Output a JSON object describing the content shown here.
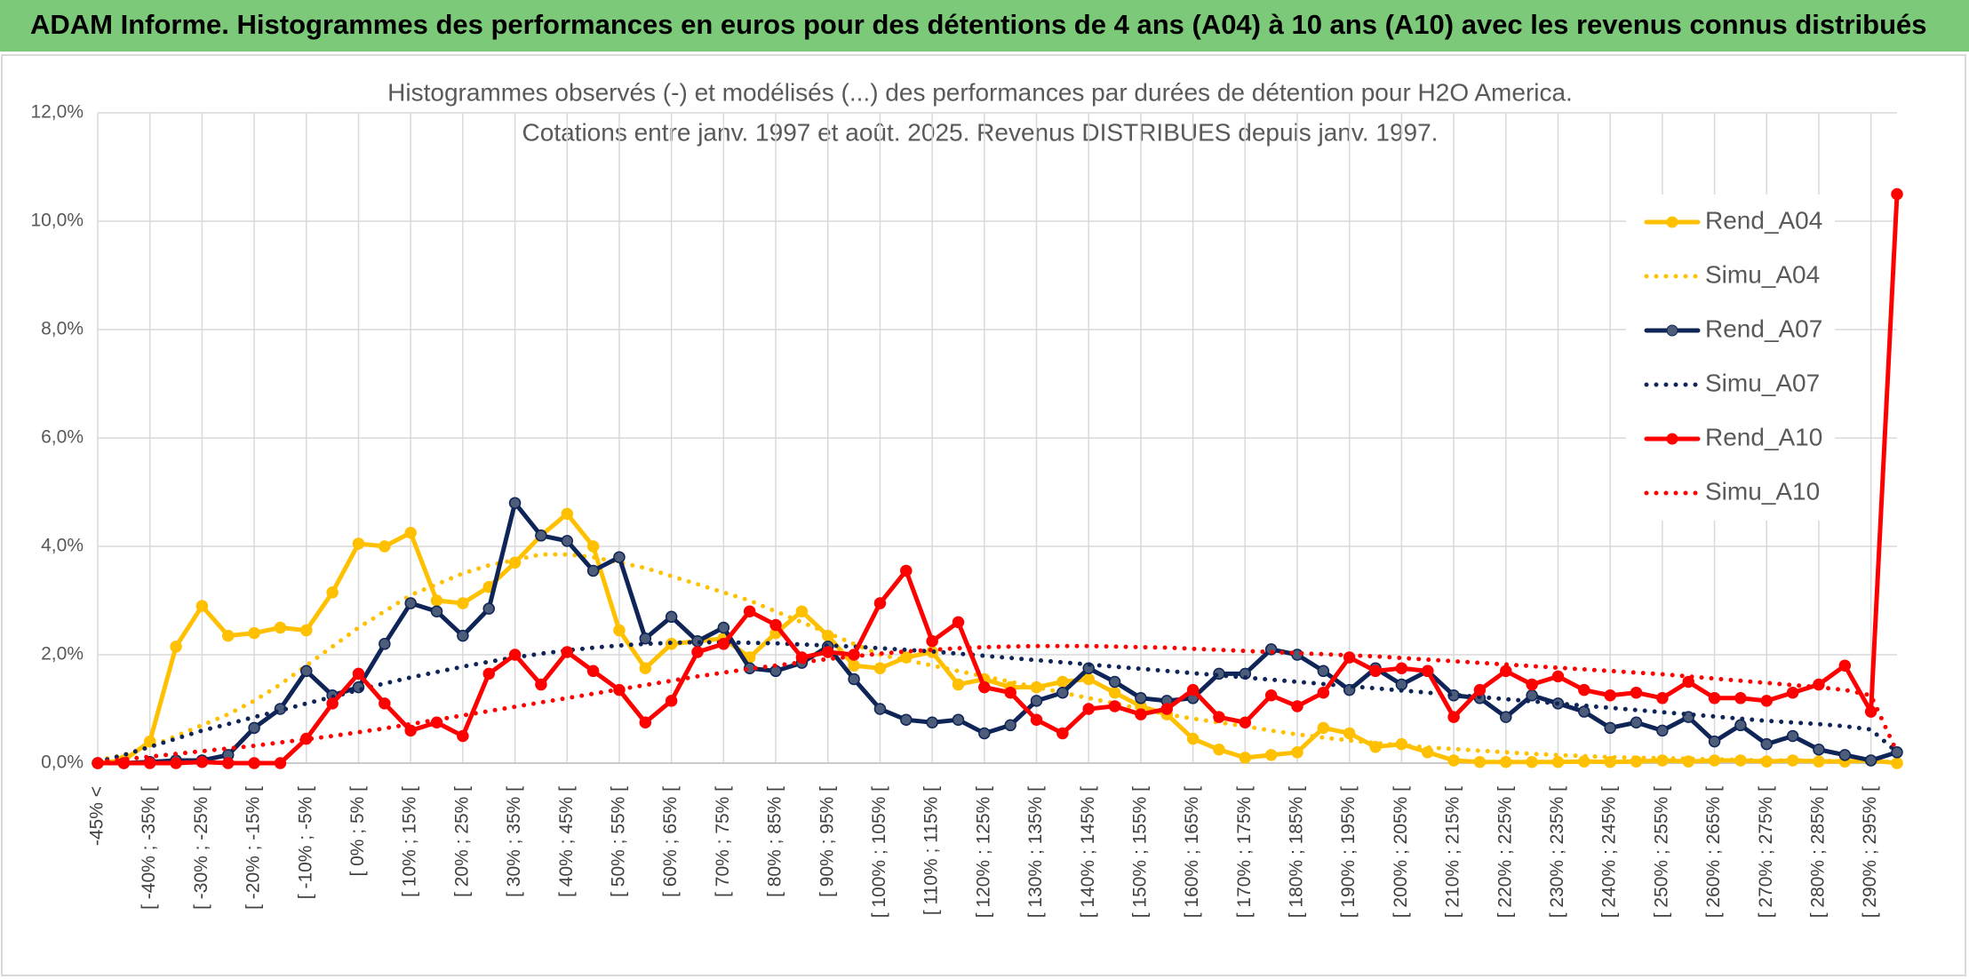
{
  "header": {
    "title": "ADAM Informe. Histogrammes des performances en euros pour des détentions de 4 ans (A04) à 10 ans (A10) avec les revenus connus distribués"
  },
  "chart_data": {
    "type": "line",
    "title": "Histogrammes observés (-) et modélisés (...) des performances par durées de détention pour H2O America.",
    "subtitle": "Cotations entre janv. 1997 et août. 2025. Revenus DISTRIBUES depuis janv. 1997.",
    "categories": [
      "-45% <",
      null,
      "[ -40% ; -35% [",
      null,
      "[ -30% ; -25% [",
      null,
      "[ -20% ; -15% [",
      null,
      "[ -10% ; -5% [",
      null,
      "[ 0% ; 5% [",
      null,
      "[ 10% ; 15% [",
      null,
      "[ 20% ; 25% [",
      null,
      "[ 30% ; 35% [",
      null,
      "[ 40% ; 45% [",
      null,
      "[ 50% ; 55% [",
      null,
      "[ 60% ; 65% [",
      null,
      "[ 70% ; 75% [",
      null,
      "[ 80% ; 85% [",
      null,
      "[ 90% ; 95% [",
      null,
      "[ 100% ; 105% [",
      null,
      "[ 110% ; 115% [",
      null,
      "[ 120% ; 125% [",
      null,
      "[ 130% ; 135% [",
      null,
      "[ 140% ; 145% [",
      null,
      "[ 150% ; 155% [",
      null,
      "[ 160% ; 165% [",
      null,
      "[ 170% ; 175% [",
      null,
      "[ 180% ; 185% [",
      null,
      "[ 190% ; 195% [",
      null,
      "[ 200% ; 205% [",
      null,
      "[ 210% ; 215% [",
      null,
      "[ 220% ; 225% [",
      null,
      "[ 230% ; 235% [",
      null,
      "[ 240% ; 245% [",
      null,
      "[ 250% ; 255% [",
      null,
      "[ 260% ; 265% [",
      null,
      "[ 270% ; 275% [",
      null,
      "[ 280% ; 285% [",
      null,
      "[ 290% ; 295% [",
      null
    ],
    "series": [
      {
        "name": "Rend_A04",
        "color": "#ffc000",
        "style": "solid",
        "values": [
          0,
          0.05,
          0.4,
          2.15,
          2.9,
          2.35,
          2.4,
          2.5,
          2.45,
          3.15,
          4.05,
          4.0,
          4.25,
          3.0,
          2.95,
          3.25,
          3.7,
          4.2,
          4.6,
          4.0,
          2.45,
          1.75,
          2.2,
          2.25,
          2.3,
          1.95,
          2.4,
          2.8,
          2.35,
          1.8,
          1.75,
          1.95,
          2.05,
          1.45,
          1.55,
          1.4,
          1.4,
          1.5,
          1.55,
          1.3,
          1.05,
          0.9,
          0.45,
          0.25,
          0.1,
          0.15,
          0.2,
          0.65,
          0.55,
          0.3,
          0.35,
          0.2,
          0.05,
          0.02,
          0.02,
          0.02,
          0.02,
          0.03,
          0.02,
          0.03,
          0.05,
          0.03,
          0.05,
          0.05,
          0.03,
          0.05,
          0.03,
          0.03,
          0.05,
          0
        ]
      },
      {
        "name": "Simu_A04",
        "color": "#ffc000",
        "style": "dotted",
        "values": [
          0.05,
          0.15,
          0.3,
          0.5,
          0.7,
          0.9,
          1.15,
          1.45,
          1.8,
          2.15,
          2.5,
          2.8,
          3.1,
          3.3,
          3.5,
          3.65,
          3.75,
          3.85,
          3.85,
          3.8,
          3.7,
          3.6,
          3.45,
          3.3,
          3.15,
          3.0,
          2.8,
          2.6,
          2.4,
          2.2,
          2.0,
          1.9,
          1.8,
          1.7,
          1.6,
          1.5,
          1.4,
          1.3,
          1.2,
          1.1,
          1.0,
          0.9,
          0.82,
          0.75,
          0.68,
          0.6,
          0.53,
          0.47,
          0.42,
          0.37,
          0.33,
          0.29,
          0.26,
          0.23,
          0.2,
          0.17,
          0.15,
          0.13,
          0.11,
          0.1,
          0.09,
          0.08,
          0.07,
          0.06,
          0.05,
          0.05,
          0.04,
          0.04,
          0.03,
          0.02
        ]
      },
      {
        "name": "Rend_A07",
        "color": "#0f2557",
        "style": "solid",
        "values": [
          0,
          0,
          0.02,
          0.05,
          0.05,
          0.15,
          0.65,
          1.0,
          1.7,
          1.25,
          1.4,
          2.2,
          2.95,
          2.8,
          2.35,
          2.85,
          4.8,
          4.2,
          4.1,
          3.55,
          3.8,
          2.3,
          2.7,
          2.25,
          2.5,
          1.75,
          1.7,
          1.85,
          2.15,
          1.55,
          1.0,
          0.8,
          0.75,
          0.8,
          0.55,
          0.7,
          1.15,
          1.3,
          1.75,
          1.5,
          1.2,
          1.15,
          1.2,
          1.65,
          1.65,
          2.1,
          2.0,
          1.7,
          1.35,
          1.75,
          1.45,
          1.7,
          1.25,
          1.2,
          0.85,
          1.25,
          1.1,
          0.95,
          0.65,
          0.75,
          0.6,
          0.85,
          0.4,
          0.7,
          0.35,
          0.5,
          0.25,
          0.15,
          0.05,
          0.2
        ]
      },
      {
        "name": "Simu_A07",
        "color": "#0f2557",
        "style": "dotted",
        "values": [
          0.02,
          0.15,
          0.3,
          0.45,
          0.6,
          0.72,
          0.85,
          0.97,
          1.1,
          1.22,
          1.35,
          1.47,
          1.58,
          1.68,
          1.78,
          1.87,
          1.95,
          2.02,
          2.08,
          2.13,
          2.17,
          2.2,
          2.22,
          2.23,
          2.23,
          2.22,
          2.21,
          2.19,
          2.17,
          2.15,
          2.12,
          2.09,
          2.06,
          2.02,
          1.98,
          1.94,
          1.9,
          1.86,
          1.82,
          1.78,
          1.74,
          1.7,
          1.66,
          1.62,
          1.58,
          1.54,
          1.5,
          1.46,
          1.42,
          1.38,
          1.34,
          1.3,
          1.26,
          1.22,
          1.18,
          1.14,
          1.1,
          1.06,
          1.02,
          0.98,
          0.94,
          0.9,
          0.86,
          0.82,
          0.78,
          0.75,
          0.72,
          0.68,
          0.62,
          0.2
        ]
      },
      {
        "name": "Rend_A10",
        "color": "#ff0000",
        "style": "solid",
        "values": [
          0,
          0,
          0,
          0,
          0.02,
          0,
          0,
          0,
          0.45,
          1.1,
          1.65,
          1.1,
          0.6,
          0.75,
          0.5,
          1.65,
          2.0,
          1.45,
          2.05,
          1.7,
          1.35,
          0.75,
          1.15,
          2.05,
          2.2,
          2.8,
          2.55,
          1.95,
          2.05,
          2.0,
          2.95,
          3.55,
          2.25,
          2.6,
          1.4,
          1.3,
          0.8,
          0.55,
          1.0,
          1.05,
          0.9,
          1.0,
          1.35,
          0.85,
          0.75,
          1.25,
          1.05,
          1.3,
          1.95,
          1.7,
          1.75,
          1.7,
          0.85,
          1.35,
          1.7,
          1.45,
          1.6,
          1.35,
          1.25,
          1.3,
          1.2,
          1.5,
          1.2,
          1.2,
          1.15,
          1.3,
          1.45,
          1.8,
          0.95,
          10.5
        ]
      },
      {
        "name": "Simu_A10",
        "color": "#ff0000",
        "style": "dotted",
        "values": [
          0.02,
          0.07,
          0.12,
          0.17,
          0.22,
          0.27,
          0.32,
          0.38,
          0.44,
          0.5,
          0.57,
          0.64,
          0.72,
          0.8,
          0.88,
          0.96,
          1.04,
          1.12,
          1.2,
          1.28,
          1.36,
          1.44,
          1.52,
          1.6,
          1.67,
          1.74,
          1.8,
          1.86,
          1.92,
          1.97,
          2.02,
          2.06,
          2.09,
          2.12,
          2.14,
          2.15,
          2.16,
          2.16,
          2.16,
          2.15,
          2.14,
          2.13,
          2.11,
          2.09,
          2.07,
          2.05,
          2.03,
          2.01,
          1.99,
          1.97,
          1.94,
          1.91,
          1.88,
          1.85,
          1.82,
          1.79,
          1.76,
          1.73,
          1.7,
          1.67,
          1.64,
          1.6,
          1.56,
          1.52,
          1.48,
          1.44,
          1.4,
          1.35,
          1.25,
          0.2
        ]
      }
    ],
    "ylim": [
      0,
      12
    ],
    "yticks": [
      {
        "value": 0,
        "label": "0,0%"
      },
      {
        "value": 2,
        "label": "2,0%"
      },
      {
        "value": 4,
        "label": "4,0%"
      },
      {
        "value": 6,
        "label": "6,0%"
      },
      {
        "value": 8,
        "label": "8,0%"
      },
      {
        "value": 10,
        "label": "10,0%"
      },
      {
        "value": 12,
        "label": "12,0%"
      }
    ],
    "grid": true,
    "legend": "right"
  }
}
